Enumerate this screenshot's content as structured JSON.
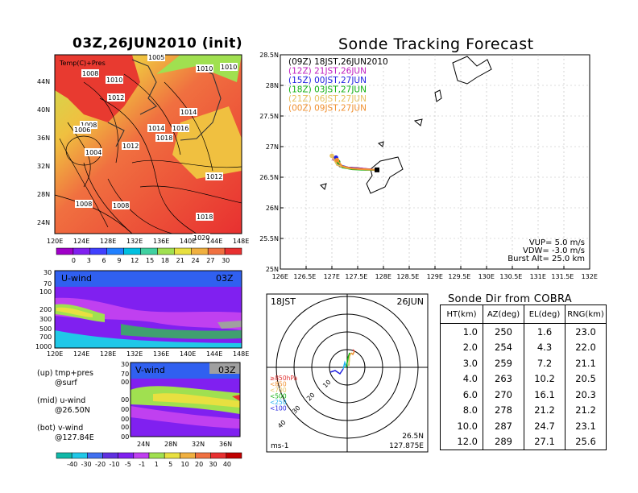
{
  "left": {
    "main_title": "03Z,26JUN2010 (init)",
    "temp_map": {
      "label": "Temp(C)+Pres",
      "lat_ticks": [
        "44N",
        "40N",
        "36N",
        "32N",
        "28N",
        "24N"
      ],
      "lon_ticks": [
        "120E",
        "124E",
        "128E",
        "132E",
        "136E",
        "140E",
        "144E",
        "148E"
      ],
      "isobars": [
        "1008",
        "1010",
        "1012",
        "1008",
        "1006",
        "1004",
        "1012",
        "1014",
        "1018",
        "1016",
        "1014",
        "1010",
        "1008",
        "1012",
        "1020",
        "1008",
        "1018",
        "1005",
        "1010"
      ]
    },
    "temp_scale": [
      "0",
      "3",
      "6",
      "9",
      "12",
      "15",
      "18",
      "21",
      "24",
      "27",
      "30"
    ],
    "u_wind": {
      "label": "U-wind",
      "time": "03Z",
      "p_ticks": [
        "30",
        "70",
        "100",
        "200",
        "300",
        "500",
        "700",
        "1000"
      ],
      "lon_ticks": [
        "120E",
        "124E",
        "128E",
        "132E",
        "136E",
        "140E",
        "144E",
        "148E"
      ]
    },
    "v_wind": {
      "label": "V-wind",
      "time": "03Z",
      "p_ticks": [
        "30",
        "70",
        "100",
        "200",
        "300",
        "500",
        "700",
        "1000"
      ],
      "lat_ticks": [
        "24N",
        "28N",
        "32N",
        "36N"
      ]
    },
    "legend_notes": [
      {
        "line1": "(up) tmp+pres",
        "line2": "@surf"
      },
      {
        "line1": "(mid) u-wind",
        "line2": "@26.50N"
      },
      {
        "line1": "(bot) v-wind",
        "line2": "@127.84E"
      }
    ],
    "wind_scale": [
      "-40",
      "-30",
      "-20",
      "-10",
      "-5",
      "-1",
      "1",
      "5",
      "10",
      "20",
      "30",
      "40"
    ]
  },
  "chart_data": {
    "type": "line",
    "title": "Sonde Tracking Forecast",
    "xlabel": "",
    "ylabel": "",
    "xlim": [
      126,
      132
    ],
    "ylim": [
      25,
      28.5
    ],
    "x_ticks": [
      "126E",
      "126.5E",
      "127E",
      "127.5E",
      "128E",
      "128.5E",
      "129E",
      "129.5E",
      "130E",
      "130.5E",
      "131E",
      "131.5E",
      "132E"
    ],
    "y_ticks": [
      "25N",
      "25.5N",
      "26N",
      "26.5N",
      "27N",
      "27.5N",
      "28N",
      "28.5N"
    ],
    "grid": true,
    "legend_position": "top-left",
    "series": [
      {
        "name": "(09Z) 18JST,26JUN2010",
        "color": "#000000",
        "x": [
          127.88,
          127.7,
          127.5,
          127.3,
          127.15,
          127.12
        ],
        "y": [
          26.62,
          26.63,
          26.65,
          26.66,
          26.68,
          26.75
        ]
      },
      {
        "name": "(12Z) 21JST,26JUN",
        "color": "#c020c0",
        "x": [
          127.88,
          127.6,
          127.3,
          127.1,
          127.05
        ],
        "y": [
          26.62,
          26.64,
          26.66,
          26.7,
          26.8
        ]
      },
      {
        "name": "(15Z) 00JST,27JUN",
        "color": "#2020e0",
        "x": [
          127.88,
          127.6,
          127.35,
          127.15,
          127.08
        ],
        "y": [
          26.62,
          26.63,
          26.65,
          26.7,
          26.82
        ]
      },
      {
        "name": "(18Z) 03JST,27JUN",
        "color": "#10b010",
        "x": [
          127.88,
          127.65,
          127.4,
          127.2,
          127.12
        ],
        "y": [
          26.62,
          26.62,
          26.63,
          26.66,
          26.75
        ]
      },
      {
        "name": "(21Z) 06JST,27JUN",
        "color": "#e8c060",
        "x": [
          127.88,
          127.6,
          127.3,
          127.1,
          127.0
        ],
        "y": [
          26.62,
          26.63,
          26.65,
          26.7,
          26.85
        ]
      },
      {
        "name": "(00Z) 09JST,27JUN",
        "color": "#f09030",
        "x": [
          127.88,
          127.65,
          127.4,
          127.2,
          127.1
        ],
        "y": [
          26.62,
          26.63,
          26.64,
          26.68,
          26.78
        ]
      }
    ],
    "params": [
      "VUP= 5.0 m/s",
      "VDW= -3.0 m/s",
      "Burst Alt= 25.0 km"
    ]
  },
  "polar": {
    "time_left": "18JST",
    "date_right": "26JUN",
    "ring_labels": [
      "10",
      "20",
      "30",
      "40"
    ],
    "height_legend": [
      "≥850hPa",
      "<850",
      "<700",
      "<500",
      "<250",
      "<100"
    ],
    "height_colors": [
      "#e03030",
      "#f09030",
      "#e8c060",
      "#10b010",
      "#20b0f0",
      "#2020e0"
    ],
    "unit": "ms-1",
    "loc_lat": "26.5N",
    "loc_lon": "127.875E"
  },
  "cobra_table": {
    "title": "Sonde Dir from COBRA",
    "headers": [
      "HT(km)",
      "AZ(deg)",
      "EL(deg)",
      "RNG(km)"
    ],
    "rows": [
      [
        "1.0",
        "250",
        "1.6",
        "23.0"
      ],
      [
        "2.0",
        "254",
        "4.3",
        "22.0"
      ],
      [
        "3.0",
        "259",
        "7.2",
        "21.1"
      ],
      [
        "4.0",
        "263",
        "10.2",
        "20.5"
      ],
      [
        "6.0",
        "270",
        "16.1",
        "20.3"
      ],
      [
        "8.0",
        "278",
        "21.2",
        "21.2"
      ],
      [
        "10.0",
        "287",
        "24.7",
        "23.1"
      ],
      [
        "12.0",
        "289",
        "27.1",
        "25.6"
      ]
    ]
  },
  "colors": {
    "temp_scale": [
      "#a000c8",
      "#8020f0",
      "#4040ff",
      "#2080ff",
      "#00c0e0",
      "#40d0a0",
      "#a0e050",
      "#e8e040",
      "#f0b040",
      "#f07040",
      "#e83030"
    ],
    "wind_scale": [
      "#10b8a8",
      "#20c8e8",
      "#4070f0",
      "#6030e0",
      "#8020f0",
      "#c040f0",
      "#a0e050",
      "#e8e040",
      "#f0b040",
      "#f07040",
      "#e83030",
      "#c00000"
    ]
  }
}
